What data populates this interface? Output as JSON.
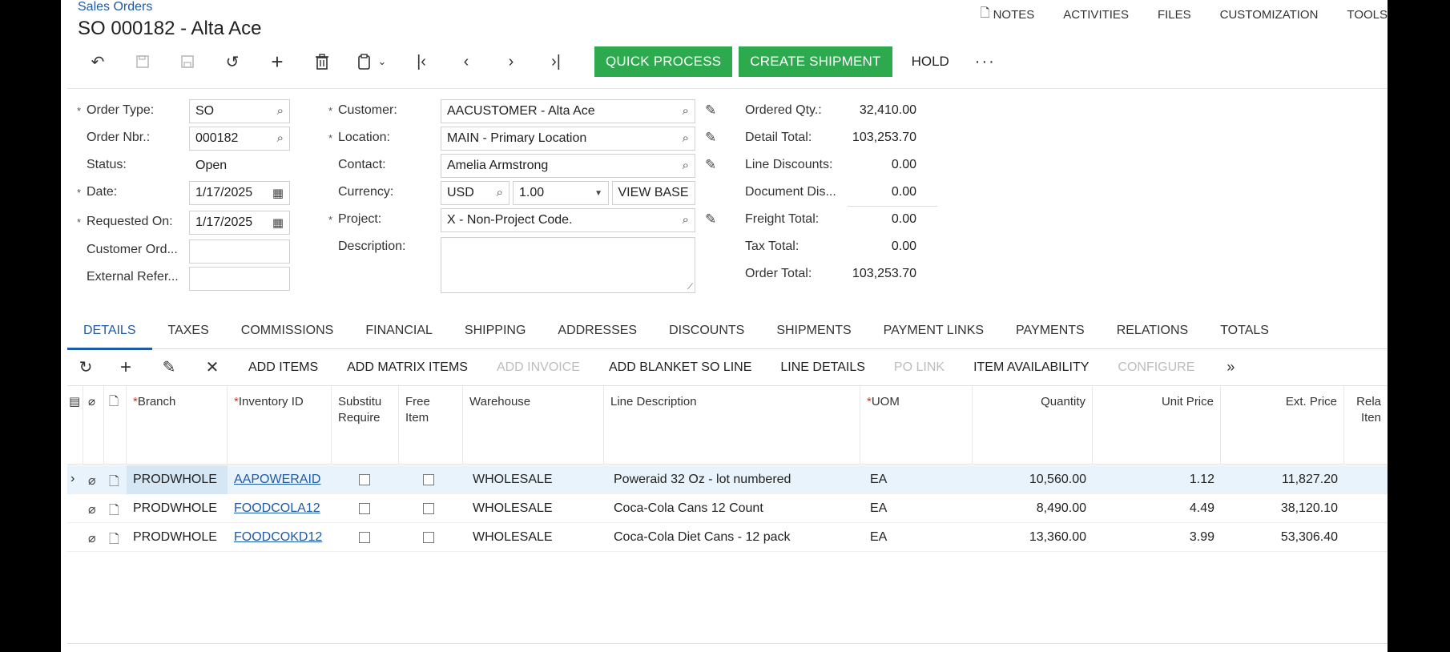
{
  "breadcrumb": "Sales Orders",
  "title": "SO 000182 - Alta Ace",
  "top_links": [
    "NOTES",
    "ACTIVITIES",
    "FILES",
    "CUSTOMIZATION",
    "TOOLS"
  ],
  "toolbar": {
    "quick_process": "QUICK PROCESS",
    "create_shipment": "CREATE SHIPMENT",
    "hold": "HOLD",
    "more": "···"
  },
  "form": {
    "order_type_label": "Order Type:",
    "order_type": "SO",
    "order_nbr_label": "Order Nbr.:",
    "order_nbr": "000182",
    "status_label": "Status:",
    "status": "Open",
    "date_label": "Date:",
    "date": "1/17/2025",
    "requested_on_label": "Requested On:",
    "requested_on": "1/17/2025",
    "customer_ord_label": "Customer Ord...",
    "external_ref_label": "External Refer...",
    "customer_label": "Customer:",
    "customer": "AACUSTOMER - Alta Ace",
    "location_label": "Location:",
    "location": "MAIN - Primary Location",
    "contact_label": "Contact:",
    "contact": "Amelia Armstrong",
    "currency_label": "Currency:",
    "currency": "USD",
    "rate": "1.00",
    "view_base": "VIEW BASE",
    "project_label": "Project:",
    "project": "X - Non-Project Code.",
    "description_label": "Description:"
  },
  "totals": {
    "ordered_qty_label": "Ordered Qty.:",
    "ordered_qty": "32,410.00",
    "detail_total_label": "Detail Total:",
    "detail_total": "103,253.70",
    "line_discounts_label": "Line Discounts:",
    "line_discounts": "0.00",
    "document_dis_label": "Document Dis...",
    "document_dis": "0.00",
    "freight_total_label": "Freight Total:",
    "freight_total": "0.00",
    "tax_total_label": "Tax Total:",
    "tax_total": "0.00",
    "order_total_label": "Order Total:",
    "order_total": "103,253.70"
  },
  "tabs": [
    "DETAILS",
    "TAXES",
    "COMMISSIONS",
    "FINANCIAL",
    "SHIPPING",
    "ADDRESSES",
    "DISCOUNTS",
    "SHIPMENTS",
    "PAYMENT LINKS",
    "PAYMENTS",
    "RELATIONS",
    "TOTALS"
  ],
  "grid_toolbar": [
    "ADD ITEMS",
    "ADD MATRIX ITEMS",
    "ADD INVOICE",
    "ADD BLANKET SO LINE",
    "LINE DETAILS",
    "PO LINK",
    "ITEM AVAILABILITY",
    "CONFIGURE"
  ],
  "columns": {
    "branch": "Branch",
    "inventory_id": "Inventory ID",
    "substitute_1": "Substitu",
    "substitute_2": "Require",
    "free_1": "Free",
    "free_2": "Item",
    "warehouse": "Warehouse",
    "line_description": "Line Description",
    "uom": "UOM",
    "quantity": "Quantity",
    "unit_price": "Unit Price",
    "ext_price": "Ext. Price",
    "related_1": "Rela",
    "related_2": "Iten"
  },
  "rows": [
    {
      "branch": "PRODWHOLE",
      "inventory_id": "AAPOWERAID",
      "warehouse": "WHOLESALE",
      "description": "Poweraid 32 Oz - lot numbered",
      "uom": "EA",
      "quantity": "10,560.00",
      "unit_price": "1.12",
      "ext_price": "11,827.20"
    },
    {
      "branch": "PRODWHOLE",
      "inventory_id": "FOODCOLA12",
      "warehouse": "WHOLESALE",
      "description": "Coca-Cola Cans 12 Count",
      "uom": "EA",
      "quantity": "8,490.00",
      "unit_price": "4.49",
      "ext_price": "38,120.10"
    },
    {
      "branch": "PRODWHOLE",
      "inventory_id": "FOODCOKD12",
      "warehouse": "WHOLESALE",
      "description": "Coca-Cola Diet Cans - 12 pack",
      "uom": "EA",
      "quantity": "13,360.00",
      "unit_price": "3.99",
      "ext_price": "53,306.40"
    }
  ]
}
